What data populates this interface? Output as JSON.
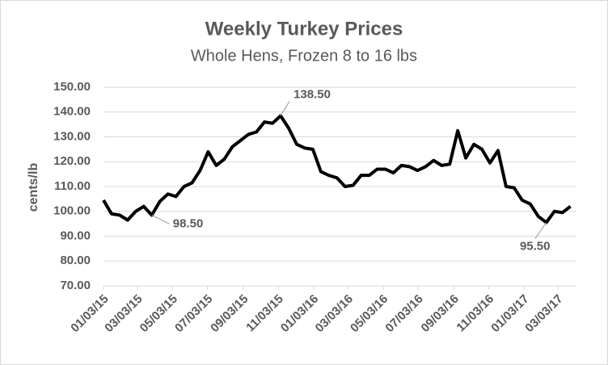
{
  "chart_data": {
    "type": "line",
    "title": "Weekly Turkey Prices",
    "subtitle": "Whole Hens, Frozen 8 to 16 lbs",
    "y_label": "cents/lb",
    "x": [
      "01/03/15",
      "01/17/15",
      "01/31/15",
      "02/14/15",
      "02/28/15",
      "03/14/15",
      "03/28/15",
      "04/11/15",
      "04/25/15",
      "05/09/15",
      "05/23/15",
      "06/06/15",
      "06/20/15",
      "07/04/15",
      "07/18/15",
      "08/01/15",
      "08/15/15",
      "08/29/15",
      "09/12/15",
      "09/26/15",
      "10/10/15",
      "10/24/15",
      "11/07/15",
      "11/21/15",
      "12/05/15",
      "12/19/15",
      "01/02/16",
      "01/16/16",
      "01/30/16",
      "02/13/16",
      "02/27/16",
      "03/12/16",
      "03/26/16",
      "04/09/16",
      "04/23/16",
      "05/07/16",
      "05/21/16",
      "06/04/16",
      "06/18/16",
      "07/02/16",
      "07/16/16",
      "07/30/16",
      "08/13/16",
      "08/27/16",
      "09/10/16",
      "09/24/16",
      "10/08/16",
      "10/22/16",
      "11/05/16",
      "11/19/16",
      "12/03/16",
      "12/17/16",
      "12/31/16",
      "01/14/17",
      "01/28/17",
      "02/11/17",
      "02/25/17",
      "03/11/17",
      "03/25/17"
    ],
    "series": [
      {
        "color": "#000000",
        "values": [
          104.5,
          99,
          98.5,
          96.5,
          100,
          102,
          98.5,
          104,
          107,
          106,
          110,
          111.5,
          116.5,
          124,
          118.5,
          121,
          126,
          128.5,
          131,
          132,
          136,
          135.5,
          138.5,
          133.5,
          127,
          125.5,
          125,
          116,
          114.5,
          113.5,
          110,
          110.5,
          114.5,
          114.5,
          117,
          117,
          115.5,
          118.5,
          118,
          116.5,
          118,
          120.5,
          118.5,
          119,
          132.5,
          121.5,
          127,
          125,
          119.5,
          124.5,
          110,
          109.5,
          104.5,
          103,
          98,
          95.5,
          100,
          99.5,
          102
        ]
      }
    ],
    "annotations": [
      {
        "x": "11/07/15",
        "y": 138.5,
        "label": "138.50"
      },
      {
        "x": "03/28/15",
        "y": 98.5,
        "label": "98.50"
      },
      {
        "x": "02/11/17",
        "y": 95.5,
        "label": "95.50"
      }
    ],
    "xlim": [
      "01/03/15",
      "04/03/17"
    ],
    "xticks": [
      "01/03/15",
      "03/03/15",
      "05/03/15",
      "07/03/15",
      "09/03/15",
      "11/03/15",
      "01/03/16",
      "03/03/16",
      "05/03/16",
      "07/03/16",
      "09/03/16",
      "11/03/16",
      "01/03/17",
      "03/03/17"
    ],
    "ylim": [
      70,
      150
    ],
    "yticks": [
      {
        "value": 70,
        "label": "70.00"
      },
      {
        "value": 80,
        "label": "80.00"
      },
      {
        "value": 90,
        "label": "90.00"
      },
      {
        "value": 100,
        "label": "100.00"
      },
      {
        "value": 110,
        "label": "110.00"
      },
      {
        "value": 120,
        "label": "120.00"
      },
      {
        "value": 130,
        "label": "130.00"
      },
      {
        "value": 140,
        "label": "140.00"
      },
      {
        "value": 150,
        "label": "150.00"
      }
    ],
    "grid": true
  }
}
